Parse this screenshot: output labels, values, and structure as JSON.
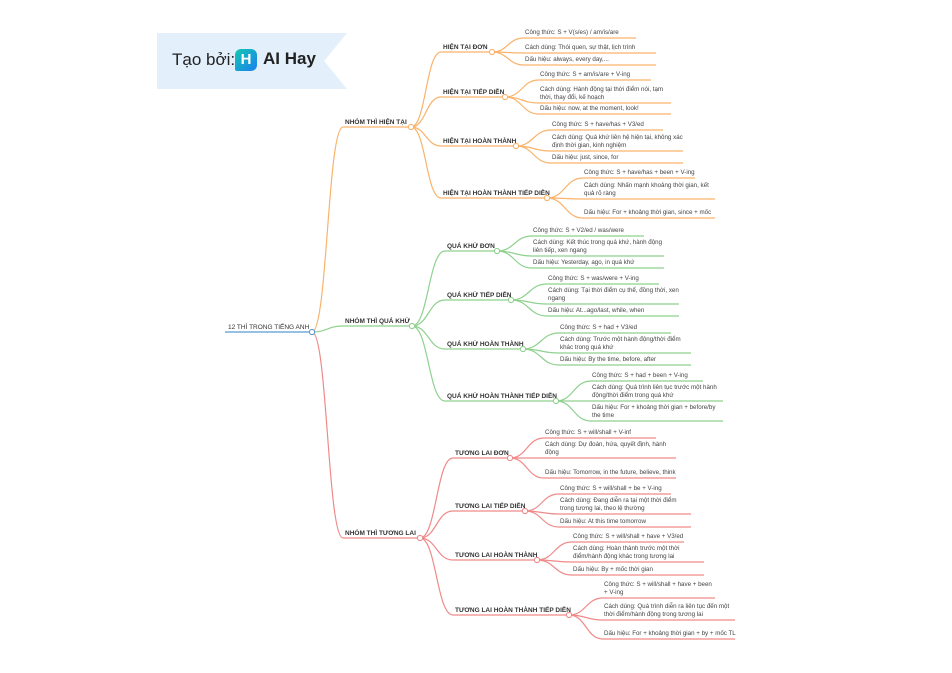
{
  "badge": {
    "prefix": "Tạo bởi:",
    "logo_letter": "H",
    "brand": "AI Hay",
    "color": "#e3f0fc"
  },
  "root": {
    "label": "12 THÌ TRONG TIẾNG ANH",
    "color": "#5b9bd5"
  },
  "groups": [
    {
      "label": "NHÓM THÌ HIỆN TẠI",
      "color": "#f9b36b",
      "tenses": [
        {
          "label": "HIỆN TẠI ĐƠN",
          "leaves": [
            "Công thức: S + V(s/es) / am/is/are",
            "Cách dùng: Thói quen, sự thật, lịch trình",
            "Dấu hiệu: always, every day,..."
          ]
        },
        {
          "label": "HIỆN TẠI TIẾP DIỄN",
          "leaves": [
            "Công thức: S + am/is/are + V-ing",
            "Cách dùng: Hành động tại thời điểm nói, tạm thời, thay đổi, kế hoạch",
            "Dấu hiệu: now, at the moment, look!"
          ]
        },
        {
          "label": "HIỆN TẠI HOÀN THÀNH",
          "leaves": [
            "Công thức: S + have/has + V3/ed",
            "Cách dùng: Quá khứ liên hệ hiện tại, không xác định thời gian, kinh nghiệm",
            "Dấu hiệu: just, since, for"
          ]
        },
        {
          "label": "HIỆN TẠI HOÀN THÀNH TIẾP DIỄN",
          "leaves": [
            "Công thức: S + have/has + been + V-ing",
            "Cách dùng: Nhấn mạnh khoảng thời gian, kết quả rõ ràng",
            "Dấu hiệu: For + khoảng thời gian, since + mốc"
          ]
        }
      ]
    },
    {
      "label": "NHÓM THÌ QUÁ KHỨ",
      "color": "#8fd18f",
      "tenses": [
        {
          "label": "QUÁ KHỨ ĐƠN",
          "leaves": [
            "Công thức: S + V2/ed / was/were",
            "Cách dùng: Kết thúc trong quá khứ, hành động liên tiếp, xen ngang",
            "Dấu hiệu: Yesterday, ago, in quá khứ"
          ]
        },
        {
          "label": "QUÁ KHỨ TIẾP DIỄN",
          "leaves": [
            "Công thức: S + was/were + V-ing",
            "Cách dùng: Tại thời điểm cụ thể, đồng thời, xen ngang",
            "Dấu hiệu: At...ago/last, while, when"
          ]
        },
        {
          "label": "QUÁ KHỨ HOÀN THÀNH",
          "leaves": [
            "Công thức: S + had + V3/ed",
            "Cách dùng: Trước một hành động/thời điểm khác trong quá khứ",
            "Dấu hiệu: By the time, before, after"
          ]
        },
        {
          "label": "QUÁ KHỨ HOÀN THÀNH TIẾP DIỄN",
          "leaves": [
            "Công thức: S + had + been + V-ing",
            "Cách dùng: Quá trình liên tục trước một hành động/thời điểm trong quá khứ",
            "Dấu hiệu: For + khoảng thời gian + before/by the time"
          ]
        }
      ]
    },
    {
      "label": "NHÓM THÌ TƯƠNG LAI",
      "color": "#f08a8a",
      "tenses": [
        {
          "label": "TƯƠNG LAI ĐƠN",
          "leaves": [
            "Công thức: S + will/shall + V-inf",
            "Cách dùng: Dự đoán, hứa, quyết định, hành động",
            "Dấu hiệu: Tomorrow, in the future, believe, think"
          ]
        },
        {
          "label": "TƯƠNG LAI TIẾP DIỄN",
          "leaves": [
            "Công thức: S + will/shall + be + V-ing",
            "Cách dùng: Đang diễn ra tại một thời điểm trong tương lai, theo lệ thường",
            "Dấu hiệu: At this time tomorrow"
          ]
        },
        {
          "label": "TƯƠNG LAI HOÀN THÀNH",
          "leaves": [
            "Công thức: S + will/shall + have + V3/ed",
            "Cách dùng: Hoàn thành trước một thời điểm/hành động khác trong tương lai",
            "Dấu hiệu: By + mốc thời gian"
          ]
        },
        {
          "label": "TƯƠNG LAI HOÀN THÀNH TIẾP DIỄN",
          "leaves": [
            "Công thức: S + will/shall + have + been + V-ing",
            "Cách dùng: Quá trình diễn ra liên tục đến một thời điểm/hành động trong tương lai",
            "Dấu hiệu: For + khoảng thời gian + by + mốc TL"
          ]
        }
      ]
    }
  ]
}
